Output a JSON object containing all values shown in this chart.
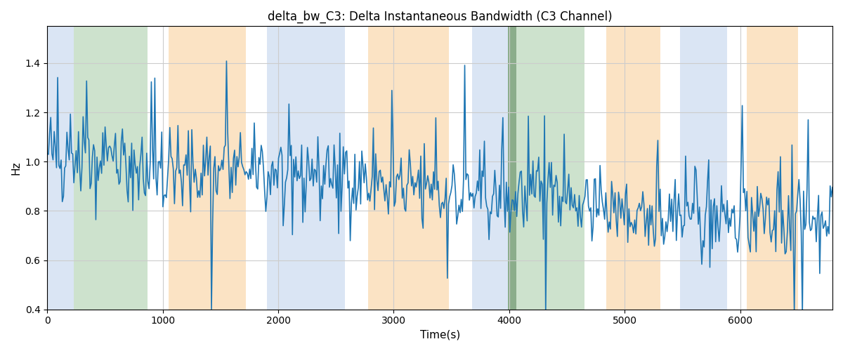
{
  "title": "delta_bw_C3: Delta Instantaneous Bandwidth (C3 Channel)",
  "xlabel": "Time(s)",
  "ylabel": "Hz",
  "xlim": [
    0,
    6800
  ],
  "ylim": [
    0.4,
    1.55
  ],
  "line_color": "#1f77b4",
  "line_width": 1.2,
  "bg_regions": [
    {
      "xmin": 0,
      "xmax": 230,
      "color": "#aec6e8",
      "alpha": 0.45
    },
    {
      "xmin": 230,
      "xmax": 870,
      "color": "#90c090",
      "alpha": 0.45
    },
    {
      "xmin": 1050,
      "xmax": 1720,
      "color": "#f9c88a",
      "alpha": 0.5
    },
    {
      "xmin": 1900,
      "xmax": 2580,
      "color": "#aec6e8",
      "alpha": 0.45
    },
    {
      "xmin": 2780,
      "xmax": 3480,
      "color": "#f9c88a",
      "alpha": 0.5
    },
    {
      "xmin": 3680,
      "xmax": 3990,
      "color": "#aec6e8",
      "alpha": 0.45
    },
    {
      "xmin": 3990,
      "xmax": 4060,
      "color": "#5a8a5a",
      "alpha": 0.7
    },
    {
      "xmin": 4060,
      "xmax": 4650,
      "color": "#90c090",
      "alpha": 0.45
    },
    {
      "xmin": 4840,
      "xmax": 5310,
      "color": "#f9c88a",
      "alpha": 0.5
    },
    {
      "xmin": 5480,
      "xmax": 5890,
      "color": "#aec6e8",
      "alpha": 0.45
    },
    {
      "xmin": 6060,
      "xmax": 6500,
      "color": "#f9c88a",
      "alpha": 0.5
    }
  ],
  "grid_color": "#cccccc",
  "background_color": "#ffffff",
  "figsize": [
    12,
    5
  ],
  "dpi": 100,
  "yticks": [
    0.4,
    0.6,
    0.8,
    1.0,
    1.2,
    1.4
  ],
  "seed": 42,
  "n_points": 680
}
